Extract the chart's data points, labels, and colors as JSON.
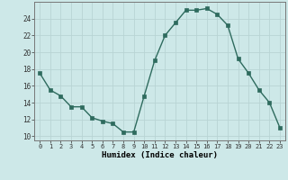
{
  "x": [
    0,
    1,
    2,
    3,
    4,
    5,
    6,
    7,
    8,
    9,
    10,
    11,
    12,
    13,
    14,
    15,
    16,
    17,
    18,
    19,
    20,
    21,
    22,
    23
  ],
  "y": [
    17.5,
    15.5,
    14.8,
    13.5,
    13.5,
    12.2,
    11.8,
    11.5,
    10.5,
    10.5,
    14.8,
    19.0,
    22.0,
    23.5,
    25.0,
    25.0,
    25.2,
    24.5,
    23.2,
    19.2,
    17.5,
    15.5,
    14.0,
    11.0
  ],
  "xlabel": "Humidex (Indice chaleur)",
  "ylim": [
    9.5,
    26.0
  ],
  "xlim": [
    -0.5,
    23.5
  ],
  "yticks": [
    10,
    12,
    14,
    16,
    18,
    20,
    22,
    24
  ],
  "xticks": [
    0,
    1,
    2,
    3,
    4,
    5,
    6,
    7,
    8,
    9,
    10,
    11,
    12,
    13,
    14,
    15,
    16,
    17,
    18,
    19,
    20,
    21,
    22,
    23
  ],
  "line_color": "#2e6b5e",
  "marker_color": "#2e6b5e",
  "bg_color": "#cde8e8",
  "grid_color": "#b8d4d4",
  "spine_color": "#777777"
}
